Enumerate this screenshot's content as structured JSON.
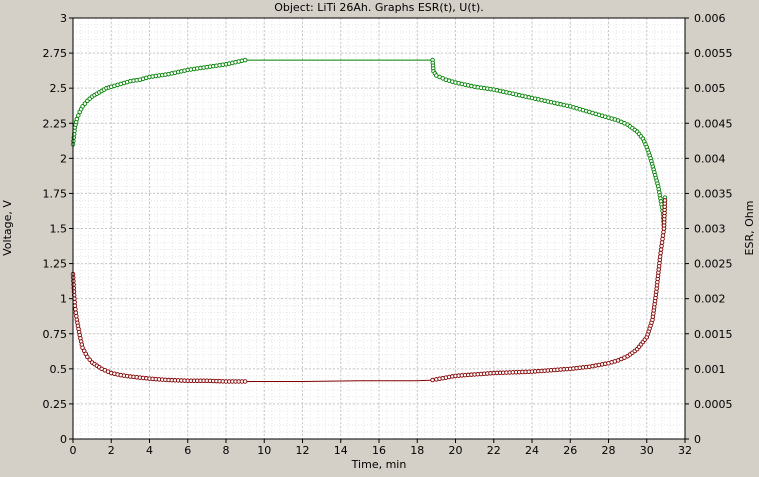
{
  "chart_data": {
    "type": "line",
    "title": "Object: LiTi 26Ah. Graphs ESR(t), U(t).",
    "xlabel": "Time, min",
    "ylabel_left": "Voltage, V",
    "ylabel_right": "ESR, Ohm",
    "xlim": [
      0,
      32
    ],
    "ylim_left": [
      0,
      3
    ],
    "ylim_right": [
      0,
      0.006
    ],
    "x_ticks": [
      "0",
      "2",
      "4",
      "6",
      "8",
      "10",
      "12",
      "14",
      "16",
      "18",
      "20",
      "22",
      "24",
      "26",
      "28",
      "30",
      "32"
    ],
    "y_left_ticks": [
      "0",
      "0.25",
      "0.5",
      "0.75",
      "1",
      "1.25",
      "1.5",
      "1.75",
      "2",
      "2.25",
      "2.5",
      "2.75",
      "3"
    ],
    "y_right_ticks": [
      "0",
      "0.0005",
      "0.001",
      "0.0015",
      "0.002",
      "0.0025",
      "0.003",
      "0.0035",
      "0.004",
      "0.0045",
      "0.005",
      "0.0055",
      "0.006"
    ],
    "grid": true,
    "colors": {
      "plot_background": "#ffffff",
      "frame_background": "#d4d0c8",
      "grid": "#c8c8c8",
      "voltage_series": "#008000",
      "esr_series": "#800000"
    },
    "series": [
      {
        "axis": "left",
        "color": "#008000",
        "points": [
          [
            0.0,
            2.1
          ],
          [
            0.1,
            2.22
          ],
          [
            0.2,
            2.28
          ],
          [
            0.35,
            2.33
          ],
          [
            0.5,
            2.37
          ],
          [
            0.75,
            2.41
          ],
          [
            1.0,
            2.44
          ],
          [
            1.25,
            2.46
          ],
          [
            1.5,
            2.48
          ],
          [
            1.75,
            2.5
          ],
          [
            2.0,
            2.51
          ],
          [
            2.5,
            2.53
          ],
          [
            3.0,
            2.55
          ],
          [
            3.5,
            2.56
          ],
          [
            4.0,
            2.58
          ],
          [
            5.0,
            2.6
          ],
          [
            6.0,
            2.63
          ],
          [
            7.0,
            2.65
          ],
          [
            8.0,
            2.67
          ],
          [
            9.0,
            2.7
          ],
          [
            9.2,
            2.7
          ],
          [
            10.0,
            2.7
          ],
          [
            12.0,
            2.7
          ],
          [
            14.0,
            2.7
          ],
          [
            16.0,
            2.7
          ],
          [
            18.0,
            2.7
          ],
          [
            18.8,
            2.7
          ],
          [
            18.85,
            2.62
          ],
          [
            19.0,
            2.59
          ],
          [
            19.5,
            2.56
          ],
          [
            20.0,
            2.54
          ],
          [
            21.0,
            2.51
          ],
          [
            22.0,
            2.49
          ],
          [
            23.0,
            2.46
          ],
          [
            24.0,
            2.43
          ],
          [
            25.0,
            2.4
          ],
          [
            26.0,
            2.37
          ],
          [
            27.0,
            2.33
          ],
          [
            28.0,
            2.29
          ],
          [
            28.5,
            2.27
          ],
          [
            29.0,
            2.24
          ],
          [
            29.5,
            2.19
          ],
          [
            29.8,
            2.14
          ],
          [
            30.0,
            2.08
          ],
          [
            30.2,
            2.0
          ],
          [
            30.4,
            1.9
          ],
          [
            30.6,
            1.8
          ],
          [
            30.8,
            1.65
          ],
          [
            30.85,
            1.6
          ],
          [
            30.9,
            1.5
          ],
          [
            30.95,
            1.72
          ]
        ]
      },
      {
        "axis": "right",
        "color": "#800000",
        "points": [
          [
            0.0,
            0.00235
          ],
          [
            0.05,
            0.0021
          ],
          [
            0.1,
            0.0019
          ],
          [
            0.2,
            0.0017
          ],
          [
            0.35,
            0.00148
          ],
          [
            0.5,
            0.0013
          ],
          [
            0.75,
            0.00117
          ],
          [
            1.0,
            0.00109
          ],
          [
            1.5,
            0.001
          ],
          [
            2.0,
            0.00094
          ],
          [
            2.5,
            0.00091
          ],
          [
            3.0,
            0.00089
          ],
          [
            4.0,
            0.00086
          ],
          [
            5.0,
            0.00084
          ],
          [
            6.0,
            0.00083
          ],
          [
            7.0,
            0.00083
          ],
          [
            8.0,
            0.00082
          ],
          [
            9.0,
            0.00082
          ],
          [
            9.2,
            0.00082
          ],
          [
            12.0,
            0.00082
          ],
          [
            15.0,
            0.00083
          ],
          [
            18.0,
            0.00083
          ],
          [
            18.8,
            0.00084
          ],
          [
            19.0,
            0.00085
          ],
          [
            20.0,
            0.0009
          ],
          [
            22.0,
            0.00094
          ],
          [
            24.0,
            0.00096
          ],
          [
            26.0,
            0.001
          ],
          [
            27.0,
            0.00103
          ],
          [
            28.0,
            0.00108
          ],
          [
            28.5,
            0.00112
          ],
          [
            29.0,
            0.00118
          ],
          [
            29.5,
            0.00128
          ],
          [
            30.0,
            0.00145
          ],
          [
            30.3,
            0.0017
          ],
          [
            30.5,
            0.0021
          ],
          [
            30.7,
            0.0026
          ],
          [
            30.8,
            0.0028
          ],
          [
            30.9,
            0.003
          ],
          [
            30.95,
            0.0034
          ]
        ]
      }
    ]
  }
}
